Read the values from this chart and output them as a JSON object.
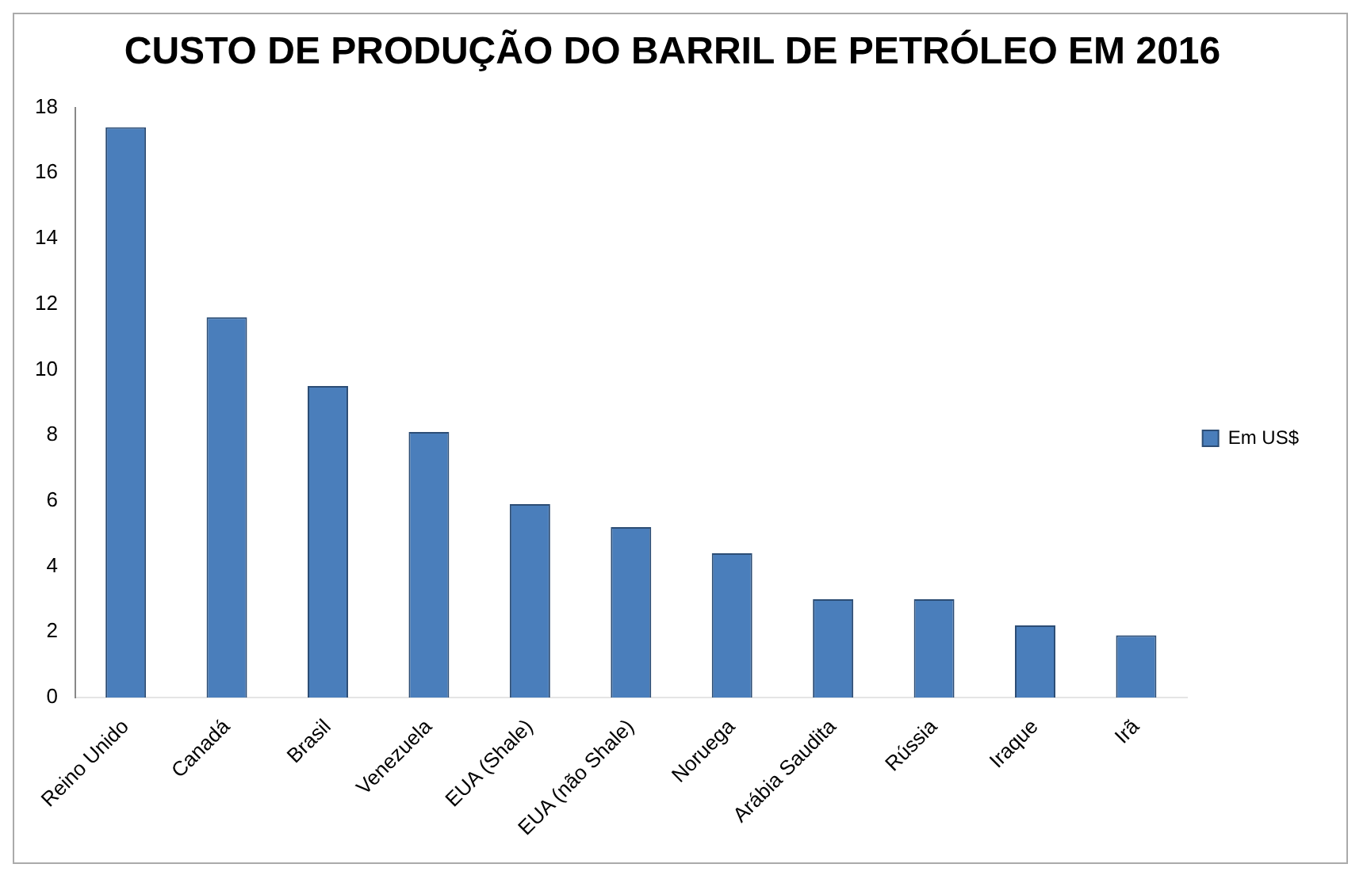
{
  "chart_data": {
    "type": "bar",
    "title": "CUSTO DE PRODUÇÃO DO BARRIL DE PETRÓLEO EM 2016",
    "categories": [
      "Reino Unido",
      "Canadá",
      "Brasil",
      "Venezuela",
      "EUA (Shale)",
      "EUA (não Shale)",
      "Noruega",
      "Arábia Saudita",
      "Rússia",
      "Iraque",
      "Irã"
    ],
    "series": [
      {
        "name": "Em US$",
        "color": "#4a7ebb",
        "values": [
          17.4,
          11.6,
          9.5,
          8.1,
          5.9,
          5.2,
          4.4,
          3.0,
          3.0,
          2.2,
          1.9
        ]
      }
    ],
    "ylim": [
      0,
      18
    ],
    "yticks": [
      0,
      2,
      4,
      6,
      8,
      10,
      12,
      14,
      16,
      18
    ],
    "grid": false,
    "legend": "right"
  }
}
